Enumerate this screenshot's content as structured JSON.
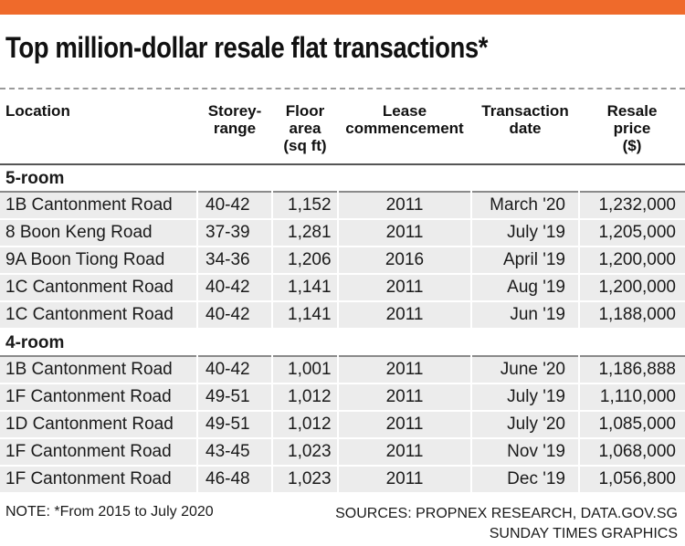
{
  "title": "Top million-dollar resale flat transactions*",
  "headers": {
    "location": "Location",
    "storey_1": "Storey-",
    "storey_2": "range",
    "floor_1": "Floor",
    "floor_2": "area",
    "floor_3": "(sq ft)",
    "lease_1": "Lease",
    "lease_2": "commencement",
    "txn_1": "Transaction",
    "txn_2": "date",
    "price_1": "Resale",
    "price_2": "price",
    "price_3": "($)"
  },
  "sections": [
    {
      "label": "5-room",
      "rows": [
        {
          "location": "1B Cantonment Road",
          "storey": "40-42",
          "floor_area": "1,152",
          "lease": "2011",
          "date": "March '20",
          "price": "1,232,000"
        },
        {
          "location": "8 Boon Keng Road",
          "storey": "37-39",
          "floor_area": "1,281",
          "lease": "2011",
          "date": "July '19",
          "price": "1,205,000"
        },
        {
          "location": "9A Boon Tiong Road",
          "storey": "34-36",
          "floor_area": "1,206",
          "lease": "2016",
          "date": "April '19",
          "price": "1,200,000"
        },
        {
          "location": "1C Cantonment Road",
          "storey": "40-42",
          "floor_area": "1,141",
          "lease": "2011",
          "date": "Aug '19",
          "price": "1,200,000"
        },
        {
          "location": "1C Cantonment Road",
          "storey": "40-42",
          "floor_area": "1,141",
          "lease": "2011",
          "date": "Jun '19",
          "price": "1,188,000"
        }
      ]
    },
    {
      "label": "4-room",
      "rows": [
        {
          "location": "1B Cantonment Road",
          "storey": "40-42",
          "floor_area": "1,001",
          "lease": "2011",
          "date": "June '20",
          "price": "1,186,888"
        },
        {
          "location": "1F Cantonment Road",
          "storey": "49-51",
          "floor_area": "1,012",
          "lease": "2011",
          "date": "July '19",
          "price": "1,110,000"
        },
        {
          "location": "1D Cantonment Road",
          "storey": "49-51",
          "floor_area": "1,012",
          "lease": "2011",
          "date": "July '20",
          "price": "1,085,000"
        },
        {
          "location": "1F Cantonment Road",
          "storey": "43-45",
          "floor_area": "1,023",
          "lease": "2011",
          "date": "Nov '19",
          "price": "1,068,000"
        },
        {
          "location": "1F Cantonment Road",
          "storey": "46-48",
          "floor_area": "1,023",
          "lease": "2011",
          "date": "Dec '19",
          "price": "1,056,800"
        }
      ]
    }
  ],
  "footer": {
    "note": "NOTE: *From 2015 to July 2020",
    "sources": "SOURCES: PROPNEX RESEARCH, DATA.GOV.SG",
    "credit": "SUNDAY TIMES GRAPHICS"
  },
  "colors": {
    "accent_bar": "#ef6a2b",
    "row_fill": "#ececec"
  }
}
